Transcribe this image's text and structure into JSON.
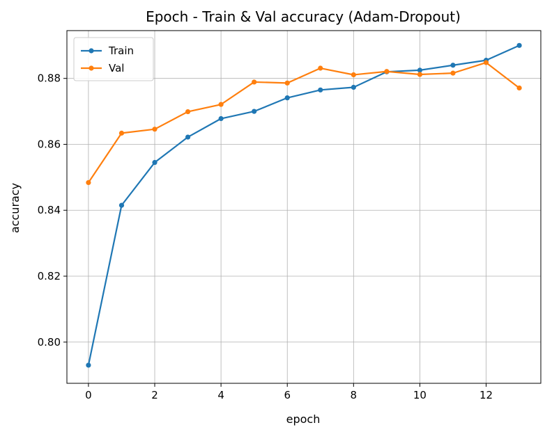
{
  "chart_data": {
    "type": "line",
    "title": "Epoch - Train & Val accuracy (Adam-Dropout)",
    "xlabel": "epoch",
    "ylabel": "accuracy",
    "xlim": [
      -0.65,
      13.65
    ],
    "ylim": [
      0.7875,
      0.8945
    ],
    "x_ticks": [
      0,
      2,
      4,
      6,
      8,
      10,
      12
    ],
    "y_ticks": [
      0.8,
      0.82,
      0.84,
      0.86,
      0.88
    ],
    "y_tick_labels": [
      "0.80",
      "0.82",
      "0.84",
      "0.86",
      "0.88"
    ],
    "grid": true,
    "legend_position": "upper-left",
    "x": [
      0,
      1,
      2,
      3,
      4,
      5,
      6,
      7,
      8,
      9,
      10,
      11,
      12,
      13
    ],
    "series": [
      {
        "name": "Train",
        "color": "#1f77b4",
        "values": [
          0.793,
          0.8415,
          0.8545,
          0.8622,
          0.8678,
          0.87,
          0.8741,
          0.8765,
          0.8773,
          0.882,
          0.8825,
          0.884,
          0.8855,
          0.89
        ]
      },
      {
        "name": "Val",
        "color": "#ff7f0e",
        "values": [
          0.8484,
          0.8634,
          0.8646,
          0.8699,
          0.8721,
          0.8789,
          0.8786,
          0.8831,
          0.8811,
          0.8821,
          0.8812,
          0.8816,
          0.8848,
          0.8771
        ]
      }
    ]
  }
}
